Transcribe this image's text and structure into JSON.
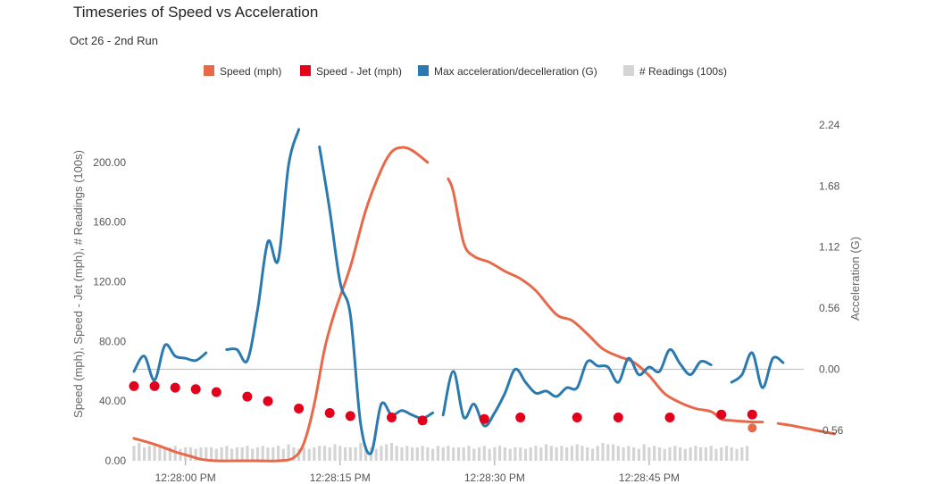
{
  "chart_data": {
    "type": "line",
    "title": "Timeseries of Speed vs Acceleration",
    "subtitle": "Oct 26 - 2nd Run",
    "ylabel_left": "Speed (mph), Speed - Jet (mph), # Readings (100s)",
    "ylabel_right": "Acceleration (G)",
    "x_range": [
      "12:27:55",
      "12:29:00"
    ],
    "x_ticks": [
      "12:28:00 PM",
      "12:28:15 PM",
      "12:28:30 PM",
      "12:28:45 PM"
    ],
    "x_tick_times": [
      "12:28:00",
      "12:28:15",
      "12:28:30",
      "12:28:45"
    ],
    "y_left_ticks": [
      "0.00",
      "40.00",
      "80.00",
      "120.00",
      "160.00",
      "200.00"
    ],
    "y_left_range": [
      0,
      225
    ],
    "y_right_ticks": [
      "-0.56",
      "0.00",
      "0.56",
      "1.12",
      "1.68",
      "2.24"
    ],
    "y_right_range": [
      -0.84,
      2.24
    ],
    "grid": false,
    "legend_position": "top",
    "legend": [
      {
        "name": "Speed (mph)",
        "color": "#e8694a",
        "kind": "line"
      },
      {
        "name": "Speed - Jet (mph)",
        "color": "#e2001a",
        "kind": "point"
      },
      {
        "name": "Max acceleration/decelleration (G)",
        "color": "#2a7ab0",
        "kind": "line"
      },
      {
        "name": "# Readings (100s)",
        "color": "#d4d4d4",
        "kind": "bar"
      }
    ],
    "series": [
      {
        "name": "Speed (mph)",
        "axis": "left",
        "segments": [
          [
            [
              "12:27:55.0",
              15
            ],
            [
              "12:27:57.0",
              11
            ],
            [
              "12:27:59.0",
              6
            ],
            [
              "12:28:00.5",
              3
            ],
            [
              "12:28:01.5",
              1
            ],
            [
              "12:28:03.0",
              0
            ],
            [
              "12:28:05.0",
              0
            ],
            [
              "12:28:07.0",
              0
            ],
            [
              "12:28:09.0",
              0
            ],
            [
              "12:28:10.5",
              2
            ],
            [
              "12:28:11.5",
              12
            ],
            [
              "12:28:12.5",
              38
            ],
            [
              "12:28:13.5",
              75
            ],
            [
              "12:28:14.5",
              100
            ],
            [
              "12:28:16.0",
              130
            ],
            [
              "12:28:17.5",
              168
            ],
            [
              "12:28:19.0",
              195
            ],
            [
              "12:28:20.0",
              207
            ],
            [
              "12:28:21.0",
              210
            ],
            [
              "12:28:22.0",
              208
            ],
            [
              "12:28:23.5",
              200
            ]
          ],
          [
            [
              "12:28:25.5",
              189
            ],
            [
              "12:28:26.0",
              180
            ],
            [
              "12:28:27.0",
              146
            ],
            [
              "12:28:28.0",
              137
            ],
            [
              "12:28:29.5",
              133
            ],
            [
              "12:28:31.0",
              127
            ],
            [
              "12:28:32.5",
              122
            ],
            [
              "12:28:34.0",
              114
            ],
            [
              "12:28:36.0",
              98
            ],
            [
              "12:28:37.5",
              94
            ],
            [
              "12:28:39.0",
              85
            ],
            [
              "12:28:40.5",
              75
            ],
            [
              "12:28:42.0",
              70
            ],
            [
              "12:28:43.5",
              66
            ],
            [
              "12:28:45.0",
              57
            ],
            [
              "12:28:46.5",
              45
            ],
            [
              "12:28:48.0",
              39
            ],
            [
              "12:28:49.5",
              35
            ],
            [
              "12:28:51.0",
              33
            ],
            [
              "12:28:52.0",
              28
            ],
            [
              "12:28:53.0",
              27
            ],
            [
              "12:28:55.0",
              26
            ],
            [
              "12:28:56.0",
              26
            ]
          ],
          [
            [
              "12:28:57.5",
              25
            ],
            [
              "12:28:58.5",
              24
            ],
            [
              "12:29:00.0",
              22
            ],
            [
              "12:29:01.5",
              20
            ],
            [
              "12:29:03.0",
              18
            ]
          ]
        ],
        "points": [
          [
            "12:28:55.0",
            22
          ]
        ]
      },
      {
        "name": "Max acceleration/decelleration (G)",
        "axis": "right",
        "segments": [
          [
            [
              "12:27:55.0",
              -0.02
            ],
            [
              "12:27:56.0",
              0.12
            ],
            [
              "12:27:57.0",
              -0.1
            ],
            [
              "12:27:58.0",
              0.22
            ],
            [
              "12:27:59.0",
              0.12
            ],
            [
              "12:28:00.0",
              0.1
            ],
            [
              "12:28:01.0",
              0.08
            ],
            [
              "12:28:02.0",
              0.15
            ]
          ],
          [
            [
              "12:28:04.0",
              0.18
            ],
            [
              "12:28:05.0",
              0.18
            ],
            [
              "12:28:06.0",
              0.08
            ],
            [
              "12:28:07.0",
              0.55
            ],
            [
              "12:28:08.0",
              1.17
            ],
            [
              "12:28:09.0",
              1.0
            ],
            [
              "12:28:10.0",
              1.87
            ],
            [
              "12:28:11.0",
              2.2
            ]
          ],
          [
            [
              "12:28:13.0",
              2.04
            ],
            [
              "12:28:14.0",
              1.46
            ],
            [
              "12:28:15.0",
              0.8
            ],
            [
              "12:28:16.0",
              0.5
            ],
            [
              "12:28:17.0",
              -0.5
            ],
            [
              "12:28:18.0",
              -0.77
            ],
            [
              "12:28:19.0",
              -0.32
            ],
            [
              "12:28:20.0",
              -0.42
            ],
            [
              "12:28:21.0",
              -0.38
            ],
            [
              "12:28:22.0",
              -0.42
            ],
            [
              "12:28:23.0",
              -0.45
            ],
            [
              "12:28:24.0",
              -0.4
            ]
          ],
          [
            [
              "12:28:25.0",
              -0.42
            ],
            [
              "12:28:26.0",
              -0.02
            ],
            [
              "12:28:27.0",
              -0.44
            ],
            [
              "12:28:28.0",
              -0.32
            ],
            [
              "12:28:29.0",
              -0.52
            ],
            [
              "12:28:30.0",
              -0.4
            ],
            [
              "12:28:31.0",
              -0.22
            ],
            [
              "12:28:32.0",
              0.0
            ],
            [
              "12:28:33.0",
              -0.12
            ],
            [
              "12:28:34.0",
              -0.22
            ],
            [
              "12:28:35.0",
              -0.2
            ],
            [
              "12:28:36.0",
              -0.25
            ],
            [
              "12:28:37.0",
              -0.17
            ],
            [
              "12:28:38.0",
              -0.17
            ],
            [
              "12:28:39.0",
              0.07
            ],
            [
              "12:28:40.0",
              0.03
            ],
            [
              "12:28:41.0",
              0.02
            ],
            [
              "12:28:42.0",
              -0.12
            ],
            [
              "12:28:43.0",
              0.1
            ],
            [
              "12:28:44.0",
              -0.05
            ],
            [
              "12:28:45.0",
              0.02
            ],
            [
              "12:28:46.0",
              -0.02
            ],
            [
              "12:28:47.0",
              0.18
            ],
            [
              "12:28:48.0",
              0.05
            ],
            [
              "12:28:49.0",
              -0.05
            ],
            [
              "12:28:50.0",
              0.07
            ],
            [
              "12:28:51.0",
              0.04
            ]
          ],
          [
            [
              "12:28:53.0",
              -0.12
            ],
            [
              "12:28:54.0",
              -0.05
            ],
            [
              "12:28:55.0",
              0.15
            ],
            [
              "12:28:56.0",
              -0.17
            ],
            [
              "12:28:57.0",
              0.1
            ],
            [
              "12:28:58.0",
              0.06
            ]
          ]
        ]
      },
      {
        "name": "Speed - Jet (mph)",
        "axis": "left",
        "points": [
          [
            "12:27:55.0",
            50
          ],
          [
            "12:27:57.0",
            50
          ],
          [
            "12:27:59.0",
            49
          ],
          [
            "12:28:01.0",
            48
          ],
          [
            "12:28:03.0",
            46
          ],
          [
            "12:28:06.0",
            43
          ],
          [
            "12:28:08.0",
            40
          ],
          [
            "12:28:11.0",
            35
          ],
          [
            "12:28:14.0",
            32
          ],
          [
            "12:28:16.0",
            30
          ],
          [
            "12:28:20.0",
            29
          ],
          [
            "12:28:23.0",
            27
          ],
          [
            "12:28:29.0",
            28
          ],
          [
            "12:28:32.5",
            29
          ],
          [
            "12:28:38.0",
            29
          ],
          [
            "12:28:42.0",
            29
          ],
          [
            "12:28:47.0",
            29
          ],
          [
            "12:28:52.0",
            31
          ],
          [
            "12:28:55.0",
            31
          ]
        ]
      },
      {
        "name": "# Readings (100s)",
        "axis": "left",
        "type": "bar",
        "start": "12:27:55.0",
        "step_seconds": 0.5,
        "values": [
          10,
          12,
          9,
          10,
          11,
          10,
          8,
          9,
          10,
          8,
          9,
          9,
          8,
          9,
          9,
          9,
          8,
          9,
          10,
          8,
          9,
          9,
          10,
          8,
          9,
          10,
          9,
          9,
          10,
          8,
          11,
          9,
          8,
          9,
          8,
          9,
          10,
          10,
          9,
          11,
          10,
          9,
          9,
          9,
          12,
          10,
          9,
          8,
          10,
          11,
          12,
          10,
          9,
          10,
          9,
          9,
          10,
          9,
          8,
          10,
          9,
          10,
          9,
          9,
          9,
          10,
          8,
          9,
          10,
          8,
          9,
          10,
          9,
          8,
          9,
          9,
          8,
          9,
          10,
          9,
          11,
          10,
          9,
          10,
          9,
          10,
          11,
          10,
          9,
          8,
          10,
          12,
          11,
          11,
          10,
          9,
          10,
          9,
          8,
          11,
          9,
          10,
          9,
          8,
          9,
          10,
          9,
          8,
          9,
          10,
          9,
          9,
          10,
          8,
          9,
          10,
          9,
          8,
          9,
          10
        ]
      }
    ]
  }
}
